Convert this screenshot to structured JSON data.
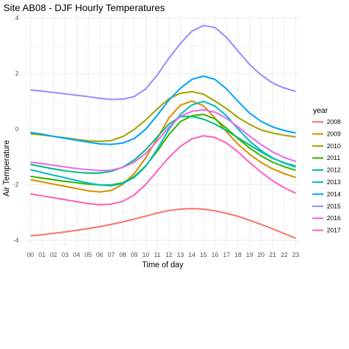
{
  "chart_data": {
    "type": "line",
    "title": "Site AB08 - DJF Hourly Temperatures",
    "xlabel": "Time of day",
    "ylabel": "Air Temperature",
    "legend_title": "year",
    "legend_position": "right",
    "grid": true,
    "ylim": [
      -4.25,
      4.05
    ],
    "x": [
      "00",
      "01",
      "02",
      "03",
      "04",
      "05",
      "06",
      "07",
      "08",
      "09",
      "10",
      "11",
      "12",
      "13",
      "14",
      "15",
      "16",
      "17",
      "18",
      "19",
      "20",
      "21",
      "22",
      "23"
    ],
    "y_ticks": [
      -4,
      -2,
      0,
      2,
      4
    ],
    "series": [
      {
        "name": "2008",
        "color": "#F8766D",
        "values": [
          -3.84,
          -3.8,
          -3.75,
          -3.7,
          -3.64,
          -3.58,
          -3.51,
          -3.43,
          -3.34,
          -3.24,
          -3.13,
          -3.02,
          -2.93,
          -2.88,
          -2.86,
          -2.88,
          -2.94,
          -3.03,
          -3.14,
          -3.28,
          -3.43,
          -3.59,
          -3.76,
          -3.93
        ]
      },
      {
        "name": "2009",
        "color": "#D89000",
        "values": [
          -1.82,
          -1.9,
          -1.98,
          -2.06,
          -2.14,
          -2.22,
          -2.26,
          -2.21,
          -1.99,
          -1.6,
          -1.03,
          -0.33,
          0.4,
          0.86,
          1.01,
          0.84,
          0.4,
          -0.1,
          -0.54,
          -0.9,
          -1.2,
          -1.43,
          -1.6,
          -1.74
        ]
      },
      {
        "name": "2010",
        "color": "#A3A500",
        "values": [
          -0.17,
          -0.21,
          -0.26,
          -0.31,
          -0.37,
          -0.42,
          -0.44,
          -0.41,
          -0.27,
          -0.01,
          0.33,
          0.73,
          1.09,
          1.29,
          1.35,
          1.26,
          1.01,
          0.74,
          0.42,
          0.17,
          -0.03,
          -0.14,
          -0.22,
          -0.28
        ]
      },
      {
        "name": "2011",
        "color": "#39B600",
        "values": [
          -1.7,
          -1.76,
          -1.82,
          -1.88,
          -1.93,
          -1.98,
          -2.01,
          -2.01,
          -1.93,
          -1.71,
          -1.32,
          -0.79,
          -0.2,
          0.27,
          0.48,
          0.53,
          0.37,
          0.03,
          -0.34,
          -0.68,
          -0.96,
          -1.19,
          -1.35,
          -1.48
        ]
      },
      {
        "name": "2012",
        "color": "#00BF7D",
        "values": [
          -1.27,
          -1.35,
          -1.43,
          -1.5,
          -1.55,
          -1.58,
          -1.58,
          -1.52,
          -1.37,
          -1.11,
          -0.74,
          -0.28,
          0.18,
          0.45,
          0.46,
          0.36,
          0.18,
          -0.05,
          -0.31,
          -0.57,
          -0.82,
          -1.05,
          -1.21,
          -1.33
        ]
      },
      {
        "name": "2013",
        "color": "#00BFC4",
        "values": [
          -1.46,
          -1.56,
          -1.66,
          -1.75,
          -1.85,
          -1.94,
          -2.01,
          -2.04,
          -1.96,
          -1.74,
          -1.34,
          -0.72,
          -0.01,
          0.53,
          0.87,
          1.0,
          0.83,
          0.48,
          0.01,
          -0.43,
          -0.77,
          -1.04,
          -1.22,
          -1.37
        ]
      },
      {
        "name": "2014",
        "color": "#00A5FF",
        "values": [
          -0.12,
          -0.18,
          -0.26,
          -0.33,
          -0.4,
          -0.47,
          -0.53,
          -0.55,
          -0.5,
          -0.34,
          0.0,
          0.5,
          1.04,
          1.47,
          1.79,
          1.91,
          1.79,
          1.45,
          1.0,
          0.58,
          0.28,
          0.08,
          -0.05,
          -0.14
        ]
      },
      {
        "name": "2015",
        "color": "#9590FF",
        "values": [
          1.41,
          1.37,
          1.32,
          1.27,
          1.22,
          1.17,
          1.11,
          1.07,
          1.08,
          1.17,
          1.45,
          1.95,
          2.55,
          3.08,
          3.53,
          3.73,
          3.66,
          3.3,
          2.81,
          2.33,
          1.95,
          1.66,
          1.48,
          1.36
        ]
      },
      {
        "name": "2016",
        "color": "#E76BF3",
        "values": [
          -1.19,
          -1.24,
          -1.3,
          -1.36,
          -1.42,
          -1.46,
          -1.49,
          -1.48,
          -1.38,
          -1.19,
          -0.87,
          -0.43,
          0.07,
          0.46,
          0.64,
          0.7,
          0.61,
          0.39,
          0.08,
          -0.25,
          -0.56,
          -0.82,
          -1.02,
          -1.16
        ]
      },
      {
        "name": "2017",
        "color": "#FF62BC",
        "values": [
          -2.33,
          -2.4,
          -2.47,
          -2.54,
          -2.61,
          -2.68,
          -2.72,
          -2.7,
          -2.6,
          -2.37,
          -1.99,
          -1.5,
          -1.02,
          -0.62,
          -0.35,
          -0.24,
          -0.3,
          -0.5,
          -0.82,
          -1.2,
          -1.55,
          -1.86,
          -2.11,
          -2.31
        ]
      }
    ]
  }
}
